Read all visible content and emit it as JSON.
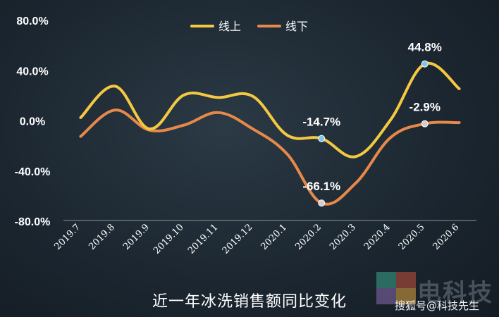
{
  "chart_data": {
    "type": "line",
    "title": "近一年冰洗销售额同比变化",
    "categories": [
      "2019.7",
      "2019.8",
      "2019.9",
      "2019.10",
      "2019.11",
      "2019.12",
      "2020.1",
      "2020.2",
      "2020.3",
      "2020.4",
      "2020.5",
      "2020.6"
    ],
    "y_ticks": [
      "80.0%",
      "40.0%",
      "0.0%",
      "-40.0%",
      "-80.0%"
    ],
    "ylim": [
      -80,
      80
    ],
    "series": [
      {
        "name": "线上",
        "color": "#f5c842",
        "values": [
          2,
          27,
          -7,
          20,
          18,
          19,
          -12,
          -14.7,
          -29,
          0,
          44.8,
          25
        ]
      },
      {
        "name": "线下",
        "color": "#e6894a",
        "values": [
          -13,
          8,
          -8,
          -4,
          6,
          -7,
          -27,
          -66.1,
          -50,
          -14,
          -2.9,
          -2
        ]
      }
    ],
    "annotations": [
      {
        "series": 0,
        "index": 7,
        "label": "-14.7%",
        "marker_color": "#7fc8e8"
      },
      {
        "series": 0,
        "index": 10,
        "label": "44.8%",
        "marker_color": "#7fc8e8"
      },
      {
        "series": 1,
        "index": 7,
        "label": "-66.1%",
        "marker_color": "#cfcfcf"
      },
      {
        "series": 1,
        "index": 10,
        "label": "-2.9%",
        "marker_color": "#cfcfcf"
      }
    ],
    "legend_position": "top-center",
    "grid": false
  },
  "watermark": {
    "brand": "电科技",
    "credit": "搜狐号@科技先生"
  }
}
